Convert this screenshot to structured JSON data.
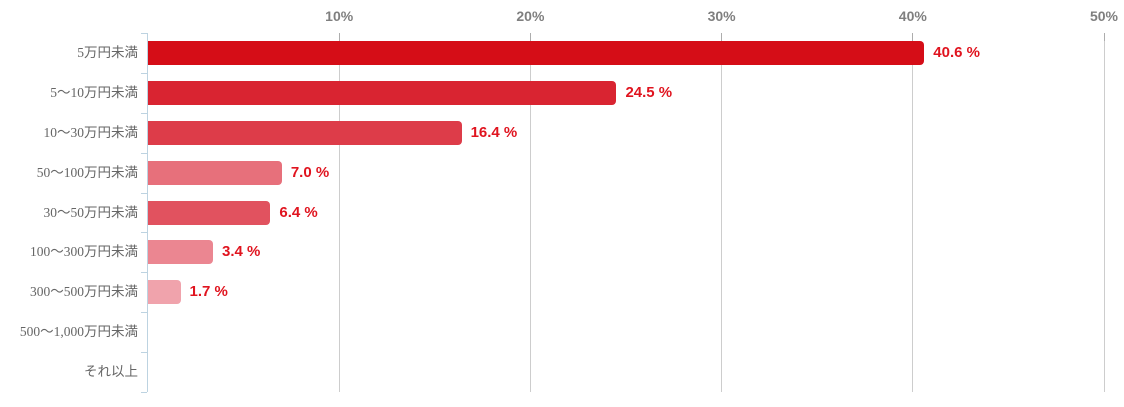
{
  "chart_data": {
    "type": "bar",
    "orientation": "horizontal",
    "title": "",
    "categories": [
      "5万円未満",
      "5〜10万円未満",
      "10〜30万円未満",
      "50〜100万円未満",
      "30〜50万円未満",
      "100〜300万円未満",
      "300〜500万円未満",
      "500〜1,000万円未満",
      "それ以上"
    ],
    "values": [
      40.6,
      24.5,
      16.4,
      7.0,
      6.4,
      3.4,
      1.7,
      null,
      null
    ],
    "value_labels": [
      "40.6 %",
      "24.5 %",
      "16.4 %",
      "7.0 %",
      "6.4 %",
      "3.4 %",
      "1.7 %",
      "",
      ""
    ],
    "bar_colors": [
      "#d50d17",
      "#d92431",
      "#dd3c49",
      "#e7707b",
      "#e1525f",
      "#eb8691",
      "#f0a3ac",
      null,
      null
    ],
    "x_axis": {
      "position": "top",
      "tick_labels": [
        "10%",
        "20%",
        "30%",
        "40%",
        "50%"
      ],
      "tick_values": [
        10,
        20,
        30,
        40,
        50
      ],
      "min": 0,
      "max": 50
    },
    "grid": true,
    "legend": false,
    "colors": {
      "value_label": "#e0141f",
      "category_label": "#666666",
      "axis_tick_label": "#7f7f7f",
      "gridline": "#cdcdcd",
      "x_tick_mark": "#adadad",
      "y_axis_line": "#bdd3e1",
      "background": "#ffffff"
    }
  }
}
